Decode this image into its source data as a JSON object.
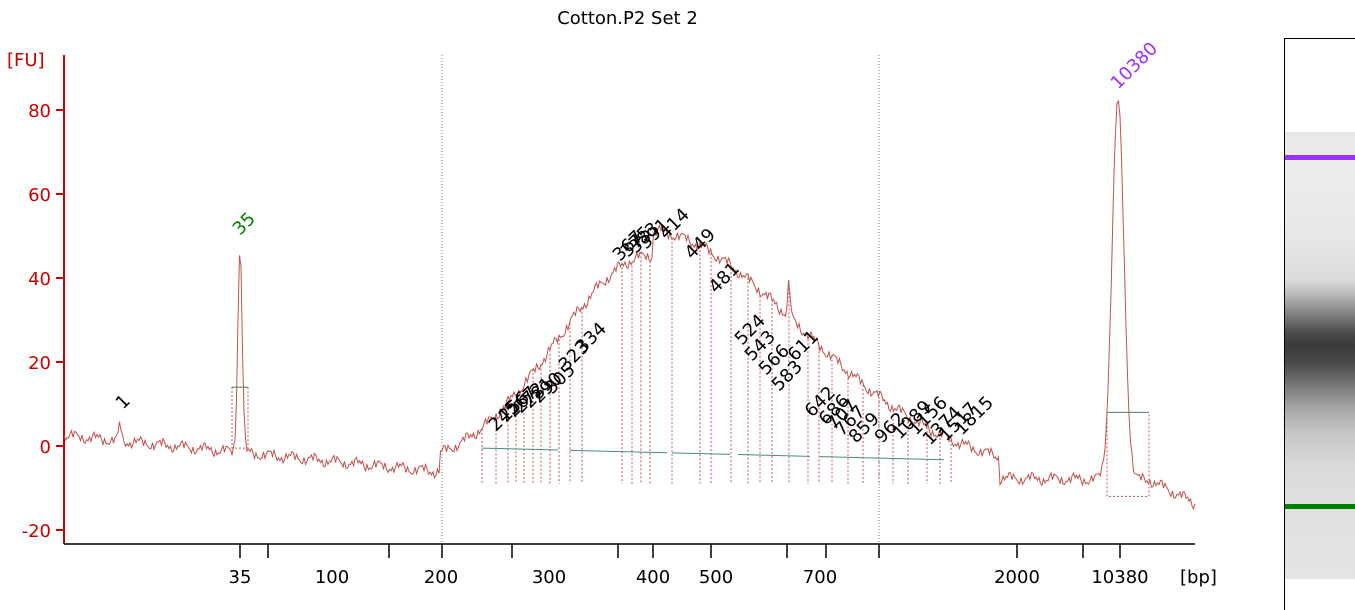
{
  "chart_data": {
    "type": "line",
    "title": "Cotton.P2 Set 2",
    "ylabel": "[FU]",
    "xlabel": "[bp]",
    "ylim": [
      -23,
      93
    ],
    "yticks": [
      -20,
      0,
      20,
      40,
      60,
      80
    ],
    "xticks": [
      "35",
      "100",
      "200",
      "300",
      "400",
      "500",
      "700",
      "2000",
      "10380"
    ],
    "markers": [
      {
        "label": "35",
        "color": "#008000"
      },
      {
        "label": "10380",
        "color": "#9b30ff"
      }
    ],
    "peak_labels": [
      "1",
      "35",
      "245",
      "256",
      "267",
      "272",
      "281",
      "290",
      "305",
      "323",
      "334",
      "367",
      "375",
      "383",
      "391",
      "414",
      "449",
      "481",
      "524",
      "543",
      "566",
      "583",
      "611",
      "642",
      "686",
      "707",
      "767",
      "859",
      "962",
      "1089",
      "1156",
      "1374",
      "1517",
      "1815",
      "10380"
    ],
    "peaks": [
      {
        "label": "1",
        "y": 4
      },
      {
        "label": "35",
        "y": 48
      },
      {
        "label": "10380",
        "y": 83
      }
    ],
    "smear_max": {
      "label": "400",
      "y": 48
    },
    "series": [
      {
        "values_desc": "electropherogram fluorescence trace"
      }
    ]
  },
  "colors": {
    "axis": "#cc0000",
    "trace": "#c0504d",
    "grid": "#7f7f9f",
    "baseline": "#4a8c7a"
  }
}
